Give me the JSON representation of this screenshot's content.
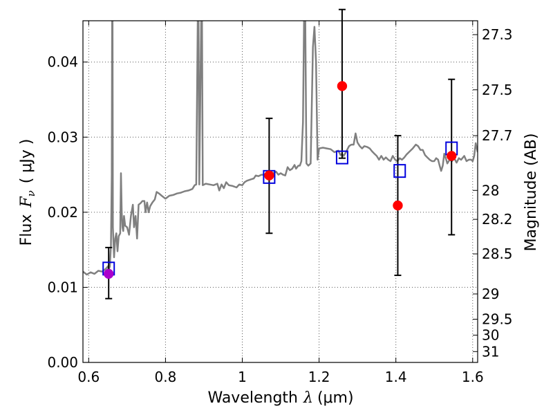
{
  "chart_data": {
    "type": "scatter",
    "xlabel": "Wavelength",
    "xlabel_symbol": "λ",
    "xlabel_unit": "(μm)",
    "ylabel_prefix": "Flux",
    "ylabel_symbol": "F",
    "ylabel_subscript": "ν",
    "ylabel_unit": "( μJy )",
    "y2label": "Magnitude (AB)",
    "xlim": [
      0.585,
      1.613
    ],
    "ylim": [
      0.0,
      0.0455
    ],
    "grid": true,
    "x_ticks": [
      0.6,
      0.8,
      1.0,
      1.2,
      1.4,
      1.6
    ],
    "x_tick_labels": [
      "0.6",
      "0.8",
      "1",
      "1.2",
      "1.4",
      "1.6"
    ],
    "y_ticks": [
      0.0,
      0.01,
      0.02,
      0.03,
      0.04
    ],
    "y_tick_labels": [
      "0.00",
      "0.01",
      "0.02",
      "0.03",
      "0.04"
    ],
    "mag_ticks": [
      27.3,
      27.5,
      27.7,
      28,
      28.2,
      28.5,
      29,
      29.5,
      30,
      31
    ],
    "mag_tick_labels": [
      "27.3",
      "27.5",
      "27.7",
      "28",
      "28.2",
      "28.5",
      "29",
      "29.5",
      "30",
      "31"
    ],
    "colors": {
      "spectrum": "#808080",
      "observed": "#ff0000",
      "observed_purple": "#aa00cc",
      "model_box": "#0000dd",
      "errorbar": "#000000",
      "grid": "#555555"
    },
    "model_photometry": [
      {
        "x": 0.652,
        "y": 0.0125
      },
      {
        "x": 1.07,
        "y": 0.0247
      },
      {
        "x": 1.26,
        "y": 0.0273
      },
      {
        "x": 1.41,
        "y": 0.0255
      },
      {
        "x": 1.545,
        "y": 0.0285
      }
    ],
    "observed_photometry": [
      {
        "x": 0.652,
        "y": 0.0118,
        "yerr_low": 0.0085,
        "yerr_high": 0.0153,
        "color": "purple"
      },
      {
        "x": 1.07,
        "y": 0.0249,
        "yerr_low": 0.0172,
        "yerr_high": 0.0325,
        "color": "red"
      },
      {
        "x": 1.26,
        "y": 0.0368,
        "yerr_low": 0.0272,
        "yerr_high": 0.047,
        "color": "red"
      },
      {
        "x": 1.405,
        "y": 0.0209,
        "yerr_low": 0.0116,
        "yerr_high": 0.0302,
        "color": "red"
      },
      {
        "x": 1.545,
        "y": 0.0275,
        "yerr_low": 0.017,
        "yerr_high": 0.0377,
        "color": "red"
      }
    ],
    "spectrum": [
      [
        0.585,
        0.0121
      ],
      [
        0.595,
        0.0117
      ],
      [
        0.605,
        0.012
      ],
      [
        0.615,
        0.0118
      ],
      [
        0.625,
        0.0122
      ],
      [
        0.635,
        0.0121
      ],
      [
        0.645,
        0.0125
      ],
      [
        0.65,
        0.0128
      ],
      [
        0.652,
        0.0123
      ],
      [
        0.655,
        0.0128
      ],
      [
        0.658,
        0.0155
      ],
      [
        0.66,
        0.025
      ],
      [
        0.661,
        0.046
      ],
      [
        0.662,
        0.046
      ],
      [
        0.663,
        0.018
      ],
      [
        0.666,
        0.014
      ],
      [
        0.669,
        0.0165
      ],
      [
        0.672,
        0.0172
      ],
      [
        0.675,
        0.0148
      ],
      [
        0.678,
        0.0168
      ],
      [
        0.682,
        0.0172
      ],
      [
        0.684,
        0.0252
      ],
      [
        0.686,
        0.02
      ],
      [
        0.688,
        0.018
      ],
      [
        0.69,
        0.0175
      ],
      [
        0.692,
        0.0195
      ],
      [
        0.695,
        0.0182
      ],
      [
        0.7,
        0.018
      ],
      [
        0.705,
        0.017
      ],
      [
        0.71,
        0.0195
      ],
      [
        0.715,
        0.021
      ],
      [
        0.718,
        0.018
      ],
      [
        0.722,
        0.0195
      ],
      [
        0.726,
        0.0165
      ],
      [
        0.73,
        0.021
      ],
      [
        0.735,
        0.0212
      ],
      [
        0.74,
        0.0215
      ],
      [
        0.745,
        0.0215
      ],
      [
        0.748,
        0.02
      ],
      [
        0.752,
        0.0213
      ],
      [
        0.756,
        0.02
      ],
      [
        0.76,
        0.0208
      ],
      [
        0.766,
        0.0213
      ],
      [
        0.772,
        0.0217
      ],
      [
        0.777,
        0.0227
      ],
      [
        0.783,
        0.0225
      ],
      [
        0.79,
        0.0222
      ],
      [
        0.8,
        0.0218
      ],
      [
        0.81,
        0.0222
      ],
      [
        0.82,
        0.0223
      ],
      [
        0.83,
        0.0225
      ],
      [
        0.84,
        0.0226
      ],
      [
        0.85,
        0.0228
      ],
      [
        0.86,
        0.0229
      ],
      [
        0.87,
        0.0231
      ],
      [
        0.876,
        0.0236
      ],
      [
        0.88,
        0.0237
      ],
      [
        0.884,
        0.046
      ],
      [
        0.886,
        0.046
      ],
      [
        0.888,
        0.0237
      ],
      [
        0.893,
        0.046
      ],
      [
        0.895,
        0.046
      ],
      [
        0.897,
        0.0236
      ],
      [
        0.905,
        0.0238
      ],
      [
        0.915,
        0.0237
      ],
      [
        0.925,
        0.0236
      ],
      [
        0.935,
        0.0238
      ],
      [
        0.94,
        0.0229
      ],
      [
        0.946,
        0.0237
      ],
      [
        0.952,
        0.0232
      ],
      [
        0.958,
        0.024
      ],
      [
        0.965,
        0.0236
      ],
      [
        0.975,
        0.0235
      ],
      [
        0.985,
        0.0233
      ],
      [
        0.992,
        0.0237
      ],
      [
        1.0,
        0.0236
      ],
      [
        1.006,
        0.024
      ],
      [
        1.012,
        0.0242
      ],
      [
        1.018,
        0.0243
      ],
      [
        1.024,
        0.0244
      ],
      [
        1.03,
        0.0245
      ],
      [
        1.035,
        0.0249
      ],
      [
        1.042,
        0.0248
      ],
      [
        1.05,
        0.025
      ],
      [
        1.058,
        0.025
      ],
      [
        1.065,
        0.0252
      ],
      [
        1.072,
        0.0252
      ],
      [
        1.08,
        0.0252
      ],
      [
        1.088,
        0.0254
      ],
      [
        1.094,
        0.025
      ],
      [
        1.1,
        0.0252
      ],
      [
        1.106,
        0.025
      ],
      [
        1.112,
        0.0249
      ],
      [
        1.118,
        0.026
      ],
      [
        1.124,
        0.0256
      ],
      [
        1.13,
        0.0258
      ],
      [
        1.136,
        0.0263
      ],
      [
        1.14,
        0.0258
      ],
      [
        1.146,
        0.0262
      ],
      [
        1.15,
        0.0262
      ],
      [
        1.154,
        0.0268
      ],
      [
        1.158,
        0.032
      ],
      [
        1.161,
        0.046
      ],
      [
        1.164,
        0.046
      ],
      [
        1.167,
        0.0265
      ],
      [
        1.172,
        0.0262
      ],
      [
        1.178,
        0.0265
      ],
      [
        1.184,
        0.042
      ],
      [
        1.188,
        0.0447
      ],
      [
        1.192,
        0.04
      ],
      [
        1.196,
        0.027
      ],
      [
        1.2,
        0.0285
      ],
      [
        1.21,
        0.0286
      ],
      [
        1.22,
        0.0285
      ],
      [
        1.23,
        0.0284
      ],
      [
        1.24,
        0.028
      ],
      [
        1.25,
        0.0282
      ],
      [
        1.256,
        0.0276
      ],
      [
        1.26,
        0.0278
      ],
      [
        1.264,
        0.0275
      ],
      [
        1.27,
        0.028
      ],
      [
        1.278,
        0.0288
      ],
      [
        1.284,
        0.029
      ],
      [
        1.29,
        0.029
      ],
      [
        1.295,
        0.0305
      ],
      [
        1.3,
        0.0293
      ],
      [
        1.306,
        0.0288
      ],
      [
        1.312,
        0.0285
      ],
      [
        1.318,
        0.0288
      ],
      [
        1.325,
        0.0287
      ],
      [
        1.332,
        0.0285
      ],
      [
        1.338,
        0.0281
      ],
      [
        1.344,
        0.0278
      ],
      [
        1.35,
        0.0275
      ],
      [
        1.356,
        0.027
      ],
      [
        1.362,
        0.0275
      ],
      [
        1.368,
        0.027
      ],
      [
        1.374,
        0.0273
      ],
      [
        1.38,
        0.027
      ],
      [
        1.386,
        0.0268
      ],
      [
        1.392,
        0.0275
      ],
      [
        1.398,
        0.027
      ],
      [
        1.404,
        0.0268
      ],
      [
        1.41,
        0.0272
      ],
      [
        1.416,
        0.027
      ],
      [
        1.422,
        0.0273
      ],
      [
        1.428,
        0.0277
      ],
      [
        1.436,
        0.0281
      ],
      [
        1.444,
        0.0285
      ],
      [
        1.452,
        0.029
      ],
      [
        1.458,
        0.0288
      ],
      [
        1.464,
        0.0283
      ],
      [
        1.47,
        0.0283
      ],
      [
        1.476,
        0.0276
      ],
      [
        1.482,
        0.0273
      ],
      [
        1.488,
        0.027
      ],
      [
        1.494,
        0.0268
      ],
      [
        1.5,
        0.0268
      ],
      [
        1.505,
        0.0272
      ],
      [
        1.51,
        0.027
      ],
      [
        1.514,
        0.0262
      ],
      [
        1.518,
        0.0255
      ],
      [
        1.522,
        0.0262
      ],
      [
        1.526,
        0.0278
      ],
      [
        1.53,
        0.0272
      ],
      [
        1.534,
        0.0265
      ],
      [
        1.54,
        0.027
      ],
      [
        1.546,
        0.0268
      ],
      [
        1.552,
        0.0272
      ],
      [
        1.558,
        0.0266
      ],
      [
        1.564,
        0.0272
      ],
      [
        1.57,
        0.027
      ],
      [
        1.578,
        0.0275
      ],
      [
        1.584,
        0.0268
      ],
      [
        1.59,
        0.027
      ],
      [
        1.596,
        0.027
      ],
      [
        1.6,
        0.0268
      ],
      [
        1.604,
        0.0275
      ],
      [
        1.608,
        0.0292
      ],
      [
        1.613,
        0.028
      ]
    ]
  }
}
